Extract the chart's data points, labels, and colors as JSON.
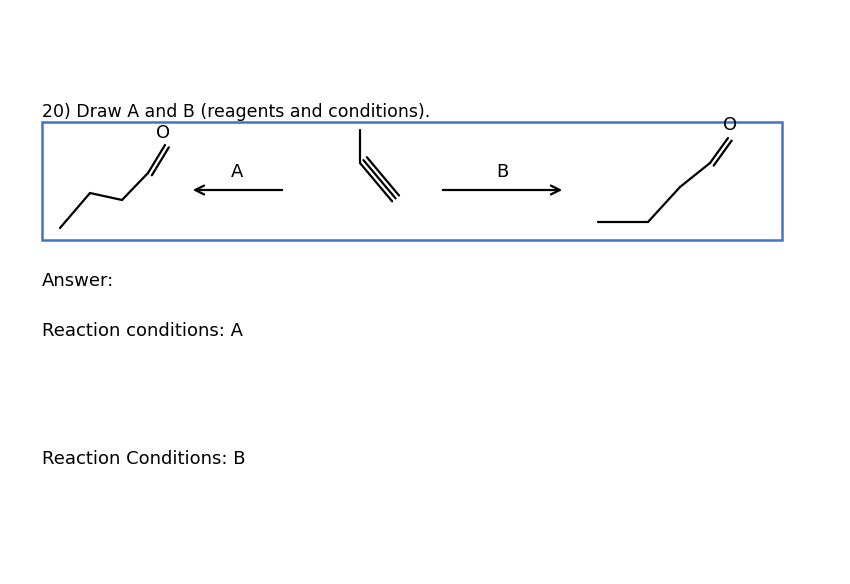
{
  "title": "20) Draw A and B (reagents and conditions).",
  "box_color": "#4472C4",
  "text_color": "#000000",
  "background_color": "#ffffff",
  "answer_text": "Answer:",
  "reaction_a_text": "Reaction conditions: A",
  "reaction_b_text": "Reaction Conditions: B",
  "label_A": "A",
  "label_B": "B",
  "figw": 8.5,
  "figh": 5.84,
  "dpi": 100
}
